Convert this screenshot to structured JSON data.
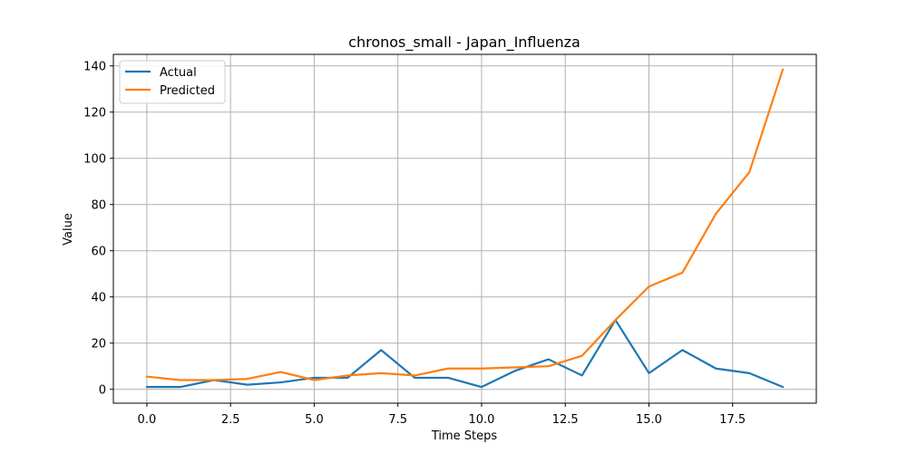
{
  "chart_data": {
    "type": "line",
    "title": "chronos_small - Japan_Influenza",
    "xlabel": "Time Steps",
    "ylabel": "Value",
    "xlim": [
      -1.0,
      20.0
    ],
    "ylim": [
      -6,
      145
    ],
    "x_ticks": [
      0.0,
      2.5,
      5.0,
      7.5,
      10.0,
      12.5,
      15.0,
      17.5
    ],
    "x_tick_labels": [
      "0.0",
      "2.5",
      "5.0",
      "7.5",
      "10.0",
      "12.5",
      "15.0",
      "17.5"
    ],
    "y_ticks": [
      0,
      20,
      40,
      60,
      80,
      100,
      120,
      140
    ],
    "y_tick_labels": [
      "0",
      "20",
      "40",
      "60",
      "80",
      "100",
      "120",
      "140"
    ],
    "grid": true,
    "legend_position": "top-left",
    "x": [
      0,
      1,
      2,
      3,
      4,
      5,
      6,
      7,
      8,
      9,
      10,
      11,
      12,
      13,
      14,
      15,
      16,
      17,
      18,
      19
    ],
    "series": [
      {
        "name": "Actual",
        "color": "#1f77b4",
        "values": [
          1,
          1,
          4,
          2,
          3,
          5,
          5,
          17,
          5,
          5,
          1,
          8,
          13,
          6,
          30,
          7,
          17,
          9,
          7,
          1
        ]
      },
      {
        "name": "Predicted",
        "color": "#ff7f0e",
        "values": [
          5.5,
          4,
          4,
          4.5,
          7.5,
          4,
          6,
          7,
          6,
          9,
          9,
          9.5,
          10,
          14.5,
          30,
          44.5,
          50.5,
          76,
          94,
          138.5
        ]
      }
    ]
  }
}
